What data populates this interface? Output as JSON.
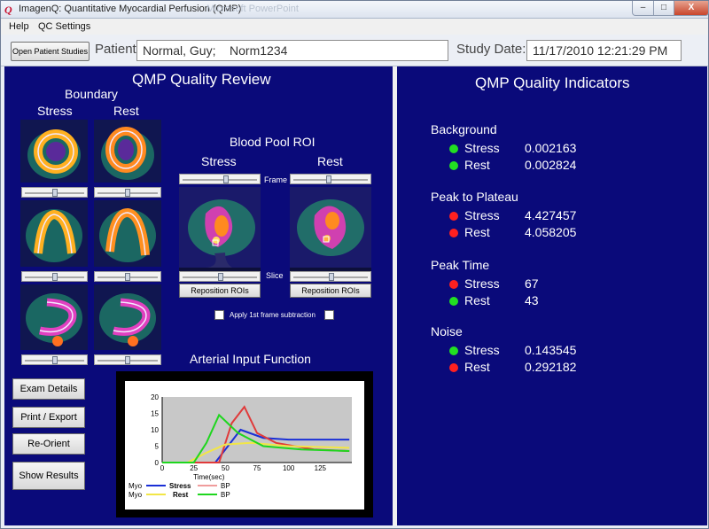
{
  "window": {
    "title": "ImagenQ: Quantitative Myocardial Perfusion (QMP)",
    "ghost_title": "Microsoft PowerPoint",
    "minimize": "–",
    "maximize": "□",
    "close": "X"
  },
  "menu": {
    "help": "Help",
    "qc_settings": "QC Settings"
  },
  "toolbar": {
    "open_button": "Open Patient Studies",
    "patient_label": "Patient:",
    "patient_value": "Normal, Guy;    Norm1234",
    "study_date_label": "Study Date:",
    "study_date_value": "11/17/2010 12:21:29 PM"
  },
  "review": {
    "title": "QMP Quality Review",
    "boundary_title": "Boundary",
    "stress_label": "Stress",
    "rest_label": "Rest",
    "blood_pool_title": "Blood Pool ROI",
    "bp_stress_label": "Stress",
    "bp_rest_label": "Rest",
    "frame_label": "Frame",
    "slice_label": "Slice",
    "reposition_stress": "Reposition ROIs",
    "reposition_rest": "Reposition ROIs",
    "apply_subtraction": "Apply 1st frame subtraction",
    "aif_title": "Arterial Input Function",
    "buttons": {
      "exam_details": "Exam Details",
      "print_export": "Print / Export",
      "reorient": "Re-Orient",
      "show_results": "Show Results"
    }
  },
  "chart_data": {
    "type": "line",
    "title": "",
    "xlabel": "Time(sec)",
    "ylabel": "",
    "xlim": [
      0,
      150
    ],
    "ylim": [
      0,
      20
    ],
    "x_ticks": [
      0,
      25,
      50,
      75,
      100,
      125
    ],
    "y_ticks": [
      0,
      5,
      10,
      15,
      20
    ],
    "legend": [
      {
        "name": "Myo",
        "group": "Stress",
        "color": "#1a2fd6"
      },
      {
        "name": "BP",
        "group": "Stress",
        "color": "#e03a3a"
      },
      {
        "name": "Myo",
        "group": "Rest",
        "color": "#f2e646"
      },
      {
        "name": "BP",
        "group": "Rest",
        "color": "#1ed61e"
      }
    ],
    "legend_text": {
      "myo1": "Myo",
      "stress": "Stress",
      "bp1": "BP",
      "myo2": "Myo",
      "rest": "Rest",
      "bp2": "BP"
    },
    "series": [
      {
        "name": "Stress Myo",
        "color": "#1a2fd6",
        "points": [
          [
            0,
            0
          ],
          [
            42,
            0
          ],
          [
            52,
            5
          ],
          [
            62,
            10
          ],
          [
            80,
            7.5
          ],
          [
            100,
            7
          ],
          [
            148,
            7
          ]
        ]
      },
      {
        "name": "Stress BP",
        "color": "#e03a3a",
        "points": [
          [
            0,
            0
          ],
          [
            45,
            0
          ],
          [
            55,
            12
          ],
          [
            65,
            17
          ],
          [
            75,
            9
          ],
          [
            90,
            6
          ],
          [
            120,
            4
          ],
          [
            148,
            3.5
          ]
        ]
      },
      {
        "name": "Rest Myo",
        "color": "#f2e646",
        "points": [
          [
            0,
            0
          ],
          [
            20,
            0
          ],
          [
            35,
            3
          ],
          [
            50,
            5.5
          ],
          [
            70,
            6
          ],
          [
            100,
            5
          ],
          [
            148,
            4.5
          ]
        ]
      },
      {
        "name": "Rest BP",
        "color": "#1ed61e",
        "points": [
          [
            0,
            0
          ],
          [
            25,
            0
          ],
          [
            35,
            6
          ],
          [
            45,
            14.5
          ],
          [
            60,
            9
          ],
          [
            80,
            5
          ],
          [
            110,
            4
          ],
          [
            148,
            3.5
          ]
        ]
      }
    ]
  },
  "indicators": {
    "title": "QMP Quality Indicators",
    "colors": {
      "good": "#22e022",
      "bad": "#ff2020"
    },
    "groups": [
      {
        "name": "Background",
        "rows": [
          {
            "label": "Stress",
            "value": "0.002163",
            "status": "good"
          },
          {
            "label": "Rest",
            "value": "0.002824",
            "status": "good"
          }
        ]
      },
      {
        "name": "Peak to Plateau",
        "rows": [
          {
            "label": "Stress",
            "value": "4.427457",
            "status": "bad"
          },
          {
            "label": "Rest",
            "value": "4.058205",
            "status": "bad"
          }
        ]
      },
      {
        "name": "Peak Time",
        "rows": [
          {
            "label": "Stress",
            "value": "67",
            "status": "bad"
          },
          {
            "label": "Rest",
            "value": "43",
            "status": "good"
          }
        ]
      },
      {
        "name": "Noise",
        "rows": [
          {
            "label": "Stress",
            "value": "0.143545",
            "status": "good"
          },
          {
            "label": "Rest",
            "value": "0.292182",
            "status": "bad"
          }
        ]
      }
    ]
  }
}
